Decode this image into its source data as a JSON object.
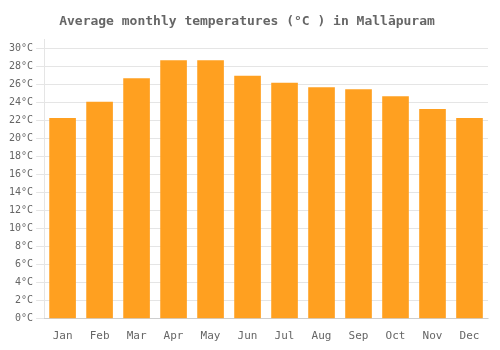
{
  "chart_data": {
    "type": "bar",
    "title": "Average monthly temperatures (°C ) in Mallāpuram",
    "categories": [
      "Jan",
      "Feb",
      "Mar",
      "Apr",
      "May",
      "Jun",
      "Jul",
      "Aug",
      "Sep",
      "Oct",
      "Nov",
      "Dec"
    ],
    "values": [
      22.3,
      24.1,
      26.7,
      28.7,
      28.7,
      27.0,
      26.2,
      25.7,
      25.5,
      24.7,
      23.3,
      22.3
    ],
    "color": "#FFA020",
    "ylim": [
      0,
      31
    ],
    "yticks": [
      {
        "value": 0,
        "label": "0°C"
      },
      {
        "value": 2,
        "label": "2°C"
      },
      {
        "value": 4,
        "label": "4°C"
      },
      {
        "value": 6,
        "label": "6°C"
      },
      {
        "value": 8,
        "label": "8°C"
      },
      {
        "value": 10,
        "label": "10°C"
      },
      {
        "value": 12,
        "label": "12°C"
      },
      {
        "value": 14,
        "label": "14°C"
      },
      {
        "value": 16,
        "label": "16°C"
      },
      {
        "value": 18,
        "label": "18°C"
      },
      {
        "value": 20,
        "label": "20°C"
      },
      {
        "value": 22,
        "label": "22°C"
      },
      {
        "value": 24,
        "label": "24°C"
      },
      {
        "value": 26,
        "label": "26°C"
      },
      {
        "value": 28,
        "label": "28°C"
      },
      {
        "value": 30,
        "label": "30°C"
      }
    ],
    "grid": true
  }
}
